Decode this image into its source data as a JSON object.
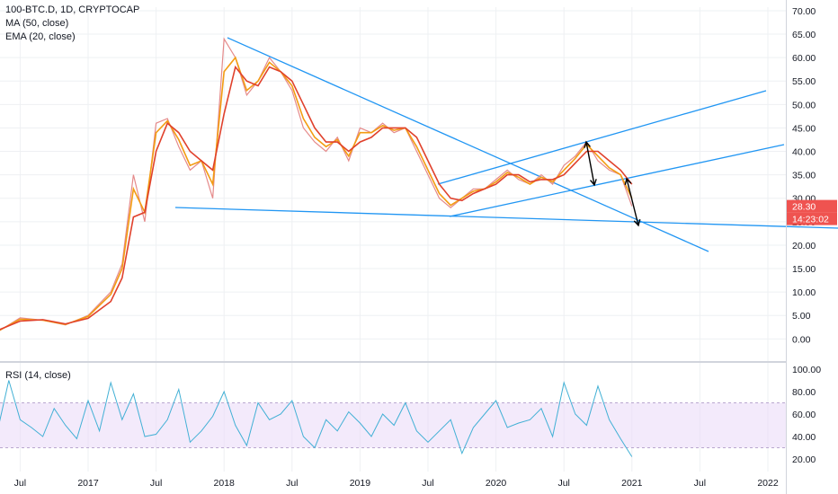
{
  "legend": {
    "symbol": "100-BTC.D, 1D, CRYPTOCAP",
    "ma": "MA (50, close)",
    "ema": "EMA (20, close)",
    "rsi": "RSI (14, close)"
  },
  "badges": {
    "price": "28.30",
    "countdown": "14:23:02",
    "price_color": "#ef5350",
    "countdown_color": "#ef5350"
  },
  "colors": {
    "price_line": "#e58a8a",
    "ma": "#e0412c",
    "ema": "#f39c12",
    "trendline": "#2196f3",
    "arrow": "#000000",
    "rsi": "#42b0d5",
    "rsi_band": "#e9d9f7",
    "grid": "#eef0f3"
  },
  "chart_data": [
    {
      "type": "line",
      "title": "100-BTC.D, 1D, CRYPTOCAP",
      "x_ticks": [
        "Jul",
        "2017",
        "Jul",
        "2018",
        "Jul",
        "2019",
        "Jul",
        "2020",
        "Jul",
        "2021",
        "Jul",
        "2022"
      ],
      "y_ticks": [
        "0.00",
        "5.00",
        "10.00",
        "15.00",
        "20.00",
        "25.00",
        "30.00",
        "35.00",
        "40.00",
        "45.00",
        "50.00",
        "55.00",
        "60.00",
        "65.00",
        "70.00"
      ],
      "ylim": [
        -3.0,
        72.0
      ],
      "x_dates": [
        "2016-05",
        "2016-07",
        "2016-09",
        "2016-11",
        "2017-01",
        "2017-03",
        "2017-04",
        "2017-05",
        "2017-06",
        "2017-07",
        "2017-08",
        "2017-09",
        "2017-10",
        "2017-11",
        "2017-12",
        "2018-01",
        "2018-02",
        "2018-03",
        "2018-04",
        "2018-05",
        "2018-06",
        "2018-07",
        "2018-08",
        "2018-09",
        "2018-10",
        "2018-11",
        "2018-12",
        "2019-01",
        "2019-02",
        "2019-03",
        "2019-04",
        "2019-05",
        "2019-06",
        "2019-07",
        "2019-08",
        "2019-09",
        "2019-10",
        "2019-11",
        "2019-12",
        "2020-01",
        "2020-02",
        "2020-03",
        "2020-04",
        "2020-05",
        "2020-06",
        "2020-07",
        "2020-08",
        "2020-09",
        "2020-10",
        "2020-11",
        "2020-12",
        "2021-01"
      ],
      "series": [
        {
          "values": [
            1.5,
            4.5,
            4.0,
            3.0,
            5.0,
            10.0,
            16.0,
            35.0,
            25.0,
            46.0,
            47.0,
            41.0,
            36.0,
            38.0,
            30.0,
            64.0,
            60.0,
            52.0,
            55.0,
            60.0,
            57.0,
            53.0,
            45.0,
            42.0,
            40.0,
            43.0,
            38.0,
            45.0,
            44.0,
            46.0,
            44.0,
            45.0,
            40.0,
            35.0,
            30.0,
            28.0,
            30.0,
            32.0,
            32.0,
            34.0,
            36.0,
            34.0,
            33.0,
            35.0,
            33.0,
            37.0,
            39.0,
            42.0,
            38.0,
            36.0,
            35.0,
            28.3
          ]
        },
        {
          "name": "MA (50, close)",
          "values": [
            1.8,
            3.8,
            4.1,
            3.2,
            4.4,
            8.0,
            13.0,
            26.0,
            27.0,
            40.0,
            46.0,
            44.0,
            40.0,
            38.0,
            36.0,
            48.0,
            58.0,
            55.0,
            54.0,
            58.0,
            57.0,
            55.0,
            50.0,
            45.0,
            42.0,
            42.0,
            40.0,
            42.0,
            43.0,
            45.0,
            45.0,
            45.0,
            43.0,
            38.0,
            33.0,
            30.0,
            29.5,
            31.0,
            32.0,
            33.0,
            35.0,
            35.0,
            33.5,
            34.0,
            34.0,
            35.0,
            37.5,
            40.0,
            40.0,
            38.0,
            36.0,
            33.0
          ]
        },
        {
          "name": "EMA (20, close)",
          "values": [
            1.6,
            4.2,
            4.0,
            3.1,
            4.8,
            9.5,
            15.0,
            32.0,
            27.0,
            44.0,
            46.5,
            42.5,
            37.0,
            38.0,
            33.0,
            57.0,
            60.0,
            53.0,
            55.0,
            59.0,
            57.0,
            54.0,
            47.0,
            43.0,
            41.0,
            42.5,
            39.0,
            44.0,
            44.0,
            45.5,
            44.5,
            45.0,
            41.0,
            36.0,
            31.0,
            28.5,
            30.0,
            31.5,
            32.0,
            33.5,
            35.5,
            34.5,
            33.0,
            34.5,
            33.5,
            36.0,
            38.5,
            41.5,
            39.0,
            36.5,
            35.0,
            30.0
          ]
        }
      ]
    },
    {
      "type": "line",
      "title": "RSI (14, close)",
      "y_ticks": [
        "20.00",
        "40.00",
        "60.00",
        "80.00",
        "100.00"
      ],
      "ylim": [
        10,
        100
      ],
      "band": [
        30,
        70
      ],
      "x_dates": [
        "2016-05",
        "2016-06",
        "2016-07",
        "2016-08",
        "2016-09",
        "2016-10",
        "2016-11",
        "2016-12",
        "2017-01",
        "2017-02",
        "2017-03",
        "2017-04",
        "2017-05",
        "2017-06",
        "2017-07",
        "2017-08",
        "2017-09",
        "2017-10",
        "2017-11",
        "2017-12",
        "2018-01",
        "2018-02",
        "2018-03",
        "2018-04",
        "2018-05",
        "2018-06",
        "2018-07",
        "2018-08",
        "2018-09",
        "2018-10",
        "2018-11",
        "2018-12",
        "2019-01",
        "2019-02",
        "2019-03",
        "2019-04",
        "2019-05",
        "2019-06",
        "2019-07",
        "2019-08",
        "2019-09",
        "2019-10",
        "2019-11",
        "2019-12",
        "2020-01",
        "2020-02",
        "2020-03",
        "2020-04",
        "2020-05",
        "2020-06",
        "2020-07",
        "2020-08",
        "2020-09",
        "2020-10",
        "2020-11",
        "2020-12",
        "2021-01"
      ],
      "series": [
        {
          "name": "RSI (14, close)",
          "values": [
            45,
            90,
            55,
            48,
            40,
            65,
            50,
            38,
            72,
            45,
            88,
            55,
            78,
            40,
            42,
            55,
            82,
            35,
            45,
            58,
            80,
            50,
            32,
            70,
            55,
            60,
            72,
            40,
            30,
            55,
            45,
            62,
            52,
            40,
            60,
            50,
            70,
            45,
            35,
            45,
            55,
            25,
            48,
            60,
            72,
            48,
            52,
            55,
            65,
            40,
            88,
            60,
            50,
            85,
            55,
            38,
            22
          ]
        }
      ]
    }
  ]
}
